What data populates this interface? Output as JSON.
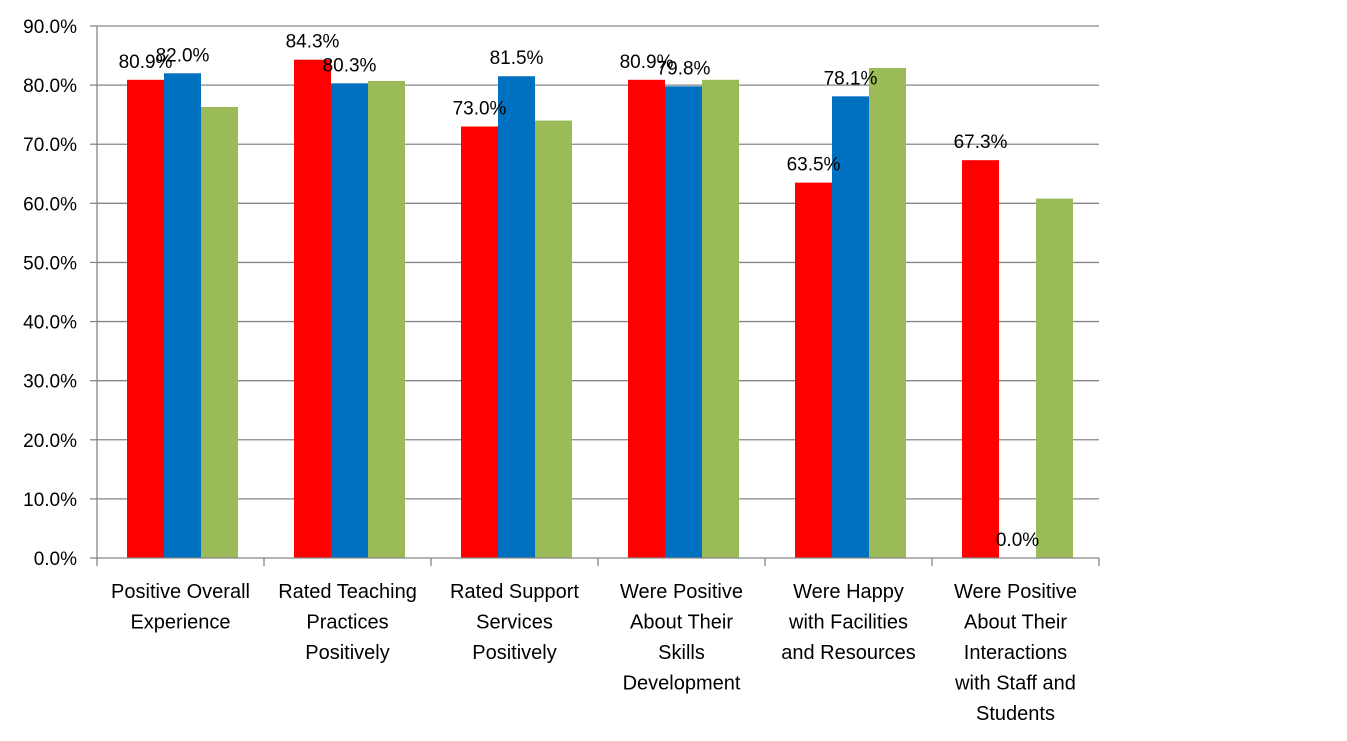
{
  "chart_data": {
    "type": "bar",
    "title": "",
    "xlabel": "",
    "ylabel": "",
    "ylim": [
      0,
      90
    ],
    "y_ticks": [
      "0.0%",
      "10.0%",
      "20.0%",
      "30.0%",
      "40.0%",
      "50.0%",
      "60.0%",
      "70.0%",
      "80.0%",
      "90.0%"
    ],
    "grid": true,
    "legend": "none",
    "categories": [
      [
        "Positive Overall",
        "Experience"
      ],
      [
        "Rated Teaching",
        "Practices",
        "Positively"
      ],
      [
        "Rated Support",
        "Services",
        "Positively"
      ],
      [
        "Were Positive",
        "About Their",
        "Skills",
        "Development"
      ],
      [
        "Were Happy",
        "with Facilities",
        "and Resources"
      ],
      [
        "Were Positive",
        "About Their",
        "Interactions",
        "with Staff and",
        "Students"
      ]
    ],
    "series": [
      {
        "color": "#ff0000",
        "values": [
          80.9,
          84.3,
          73.0,
          80.9,
          63.5,
          67.3
        ],
        "labels": [
          "80.9%",
          "84.3%",
          "73.0%",
          "80.9%",
          "63.5%",
          "67.3%"
        ]
      },
      {
        "color": "#0070c0",
        "values": [
          82.0,
          80.3,
          81.5,
          79.8,
          78.1,
          0.0
        ],
        "labels": [
          "82.0%",
          "80.3%",
          "81.5%",
          "79.8%",
          "78.1%",
          "0.0%"
        ]
      },
      {
        "color": "#9bbb59",
        "values": [
          76.3,
          80.7,
          74.0,
          80.9,
          82.9,
          60.8
        ],
        "labels": []
      }
    ]
  }
}
